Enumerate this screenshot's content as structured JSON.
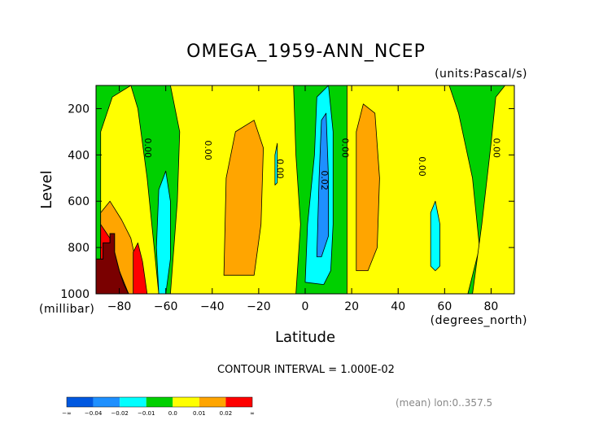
{
  "chart_data": {
    "type": "contour",
    "title": "OMEGA_1959-ANN_NCEP",
    "units_label": "(units:Pascal/s)",
    "xlabel": "Latitude",
    "xunits": "(degrees_north)",
    "ylabel": "Level",
    "yunits": "(millibar)",
    "xlim": [
      -90,
      90
    ],
    "ylim": [
      1000,
      100
    ],
    "x_ticks": [
      -80,
      -60,
      -40,
      -20,
      0,
      20,
      40,
      60,
      80
    ],
    "y_ticks": [
      1000,
      800,
      600,
      400,
      200
    ],
    "contour_interval_label": "CONTOUR INTERVAL = 1.000E-02",
    "contour_labels": [
      "0.00",
      "0.00",
      "0.00",
      "0.02",
      "0.00",
      "0.00",
      "0.00"
    ],
    "colorbar": {
      "labels": [
        "-∞",
        "-0.04",
        "-0.02",
        "-0.01",
        "0.0",
        "0.01",
        "0.02",
        "∞"
      ],
      "colors": [
        "#0058e0",
        "#1e90ff",
        "#00ffff",
        "#00d000",
        "#ffff00",
        "#ffa500",
        "#ff0000"
      ]
    },
    "regions": [
      {
        "name": "pos-north-band",
        "level": "0.00-0.01",
        "color": "#ffff00",
        "points": [
          [
            18,
            1000
          ],
          [
            18,
            100
          ],
          [
            62,
            100
          ],
          [
            66,
            220
          ],
          [
            72,
            500
          ],
          [
            75,
            800
          ],
          [
            70,
            1000
          ]
        ]
      },
      {
        "name": "pos-north-band2",
        "level": "0.00-0.01",
        "color": "#ffff00",
        "points": [
          [
            72,
            1000
          ],
          [
            76,
            700
          ],
          [
            80,
            350
          ],
          [
            82,
            150
          ],
          [
            86,
            100
          ],
          [
            90,
            100
          ],
          [
            90,
            1000
          ]
        ]
      },
      {
        "name": "pos-midsouth",
        "level": "0.00-0.01",
        "color": "#ffff00",
        "points": [
          [
            -58,
            1000
          ],
          [
            -55,
            600
          ],
          [
            -54,
            300
          ],
          [
            -58,
            100
          ],
          [
            -5,
            100
          ],
          [
            -4,
            400
          ],
          [
            -2,
            700
          ],
          [
            -4,
            1000
          ]
        ]
      },
      {
        "name": "pos-southpole",
        "level": "0.00-0.01",
        "color": "#ffff00",
        "points": [
          [
            -88,
            1000
          ],
          [
            -88,
            300
          ],
          [
            -83,
            150
          ],
          [
            -75,
            100
          ],
          [
            -72,
            200
          ],
          [
            -68,
            500
          ],
          [
            -65,
            800
          ],
          [
            -63,
            1000
          ]
        ]
      },
      {
        "name": "orange-south",
        "level": "0.01-0.02",
        "color": "#ffa500",
        "points": [
          [
            -35,
            920
          ],
          [
            -34,
            500
          ],
          [
            -30,
            300
          ],
          [
            -22,
            250
          ],
          [
            -18,
            370
          ],
          [
            -19,
            700
          ],
          [
            -22,
            920
          ]
        ]
      },
      {
        "name": "orange-north",
        "level": "0.01-0.02",
        "color": "#ffa500",
        "points": [
          [
            22,
            900
          ],
          [
            22,
            300
          ],
          [
            25,
            180
          ],
          [
            30,
            220
          ],
          [
            32,
            500
          ],
          [
            31,
            800
          ],
          [
            27,
            900
          ]
        ]
      },
      {
        "name": "orange-sp",
        "level": "0.01-0.02",
        "color": "#ffa500",
        "points": [
          [
            -88,
            1000
          ],
          [
            -88,
            650
          ],
          [
            -84,
            600
          ],
          [
            -79,
            680
          ],
          [
            -75,
            760
          ],
          [
            -72,
            900
          ],
          [
            -70,
            1000
          ]
        ]
      },
      {
        "name": "red-sp",
        "level": ">0.02",
        "color": "#ff0000",
        "points": [
          [
            -88,
            1000
          ],
          [
            -88,
            700
          ],
          [
            -84,
            760
          ],
          [
            -80,
            900
          ],
          [
            -76,
            1000
          ]
        ]
      },
      {
        "name": "red-sp2",
        "level": ">0.02",
        "color": "#ff0000",
        "points": [
          [
            -74,
            1000
          ],
          [
            -74,
            820
          ],
          [
            -72,
            780
          ],
          [
            -70,
            860
          ],
          [
            -68,
            1000
          ]
        ]
      },
      {
        "name": "cyan-60s",
        "level": "-0.02--0.01",
        "color": "#00ffff",
        "points": [
          [
            -63,
            1000
          ],
          [
            -64,
            800
          ],
          [
            -63,
            550
          ],
          [
            -60,
            470
          ],
          [
            -58,
            600
          ],
          [
            -58,
            850
          ],
          [
            -60,
            1000
          ]
        ]
      },
      {
        "name": "cyan-eq",
        "level": "-0.02--0.01",
        "color": "#00ffff",
        "points": [
          [
            0,
            950
          ],
          [
            1,
            700
          ],
          [
            4,
            400
          ],
          [
            5,
            150
          ],
          [
            10,
            100
          ],
          [
            12,
            300
          ],
          [
            12,
            700
          ],
          [
            11,
            900
          ],
          [
            8,
            960
          ]
        ]
      },
      {
        "name": "blue-eq",
        "level": "-0.04--0.02",
        "color": "#1e90ff",
        "points": [
          [
            5,
            840
          ],
          [
            6,
            500
          ],
          [
            7,
            250
          ],
          [
            9,
            220
          ],
          [
            10,
            500
          ],
          [
            10,
            750
          ],
          [
            7,
            840
          ]
        ]
      },
      {
        "name": "cyan-55n",
        "level": "-0.02--0.01",
        "color": "#00ffff",
        "points": [
          [
            54,
            880
          ],
          [
            54,
            650
          ],
          [
            56,
            600
          ],
          [
            58,
            700
          ],
          [
            58,
            880
          ],
          [
            56,
            900
          ]
        ]
      },
      {
        "name": "cyan-spot",
        "level": "-0.02--0.01",
        "color": "#00ffff",
        "points": [
          [
            -13,
            530
          ],
          [
            -13,
            400
          ],
          [
            -12,
            350
          ],
          [
            -12,
            520
          ]
        ]
      }
    ],
    "missing_region": {
      "name": "topography-missing",
      "points": [
        [
          -90,
          1000
        ],
        [
          -90,
          850
        ],
        [
          -87,
          850
        ],
        [
          -87,
          780
        ],
        [
          -84,
          780
        ],
        [
          -84,
          740
        ],
        [
          -82,
          740
        ],
        [
          -82,
          820
        ],
        [
          -80,
          900
        ],
        [
          -78,
          960
        ],
        [
          -76,
          1000
        ]
      ]
    }
  }
}
